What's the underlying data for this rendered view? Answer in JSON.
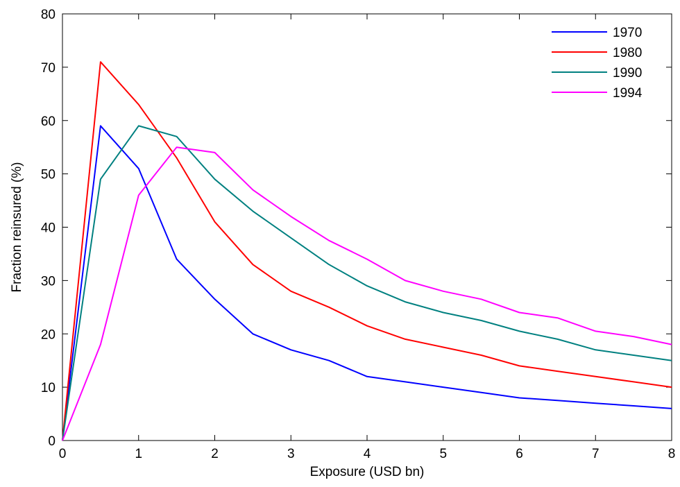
{
  "chart_data": {
    "type": "line",
    "title": "",
    "xlabel": "Exposure (USD bn)",
    "ylabel": "Fraction reinsured (%)",
    "xlim": [
      0,
      8
    ],
    "ylim": [
      0,
      80
    ],
    "xticks": [
      0,
      1,
      2,
      3,
      4,
      5,
      6,
      7,
      8
    ],
    "yticks": [
      0,
      10,
      20,
      30,
      40,
      50,
      60,
      70,
      80
    ],
    "x": [
      0,
      0.5,
      1,
      1.5,
      2,
      2.5,
      3,
      3.5,
      4,
      4.5,
      5,
      5.5,
      6,
      6.5,
      7,
      7.5,
      8
    ],
    "grid": false,
    "legend_position": "top-right",
    "series": [
      {
        "name": "1970",
        "color": "#0000ff",
        "values": [
          0,
          59,
          51,
          34,
          26.5,
          20,
          17,
          15,
          12,
          11,
          10,
          9,
          8,
          7.5,
          7,
          6.5,
          6
        ]
      },
      {
        "name": "1980",
        "color": "#ff0000",
        "values": [
          0,
          71,
          63,
          53,
          41,
          33,
          28,
          25,
          21.5,
          19,
          17.5,
          16,
          14,
          13,
          12,
          11,
          10
        ]
      },
      {
        "name": "1990",
        "color": "#008080",
        "values": [
          0,
          49,
          59,
          57,
          49,
          43,
          38,
          33,
          29,
          26,
          24,
          22.5,
          20.5,
          19,
          17,
          16,
          15
        ]
      },
      {
        "name": "1994",
        "color": "#ff00ff",
        "values": [
          0,
          18,
          46,
          55,
          54,
          47,
          42,
          37.5,
          34,
          30,
          28,
          26.5,
          24,
          23,
          20.5,
          19.5,
          18
        ]
      }
    ]
  }
}
